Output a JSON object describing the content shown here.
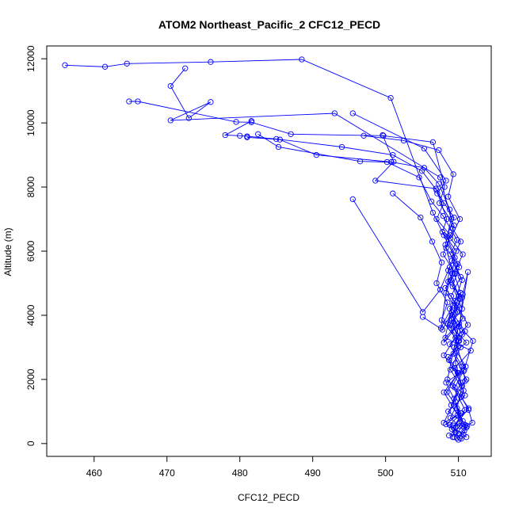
{
  "chart_data": {
    "type": "line",
    "title": "ATOM2 Northeast_Pacific_2 CFC12_PECD",
    "xlabel": "CFC12_PECD",
    "ylabel": "Altitude (m)",
    "xlim": [
      453.5,
      514.5
    ],
    "ylim": [
      -400,
      12400
    ],
    "xticks": [
      460,
      470,
      480,
      490,
      500,
      510
    ],
    "yticks": [
      0,
      2000,
      4000,
      6000,
      8000,
      10000,
      12000
    ],
    "grid": false,
    "legend": "none",
    "series_color": "#0000ff",
    "series": [
      {
        "points": [
          [
            456.0,
            11800
          ],
          [
            461.5,
            11750
          ],
          [
            464.5,
            11850
          ],
          [
            476.0,
            11900
          ],
          [
            488.5,
            11980
          ],
          [
            500.7,
            10780
          ],
          [
            506.5,
            7200
          ],
          [
            508.0,
            6500
          ],
          [
            509.5,
            5800
          ],
          [
            509.0,
            5100
          ],
          [
            510.2,
            4500
          ],
          [
            509.3,
            3800
          ],
          [
            510.0,
            3200
          ],
          [
            509.6,
            2500
          ],
          [
            510.5,
            1800
          ],
          [
            509.8,
            1100
          ],
          [
            510.7,
            600
          ],
          [
            509.4,
            200
          ]
        ]
      },
      {
        "points": [
          [
            472.5,
            11700
          ],
          [
            470.5,
            11150
          ],
          [
            473.0,
            10150
          ],
          [
            476.0,
            10650
          ],
          [
            470.5,
            10080
          ],
          [
            493.0,
            10300
          ],
          [
            507.5,
            8300
          ],
          [
            509.0,
            7000
          ],
          [
            508.2,
            6200
          ],
          [
            509.2,
            5300
          ],
          [
            508.3,
            4700
          ],
          [
            509.9,
            4100
          ],
          [
            509.0,
            3600
          ],
          [
            510.8,
            2300
          ],
          [
            508.3,
            1900
          ],
          [
            509.6,
            1300
          ],
          [
            510.2,
            550
          ],
          [
            508.7,
            250
          ]
        ]
      },
      {
        "points": [
          [
            464.8,
            10670
          ],
          [
            466.0,
            10670
          ],
          [
            479.5,
            10030
          ],
          [
            481.6,
            10020
          ],
          [
            487.0,
            9650
          ],
          [
            499.7,
            9600
          ],
          [
            506.5,
            9400
          ],
          [
            508.1,
            8000
          ],
          [
            507.4,
            7500
          ],
          [
            509.4,
            6800
          ],
          [
            508.3,
            6100
          ],
          [
            510.1,
            5500
          ],
          [
            509.2,
            4900
          ],
          [
            510.5,
            4200
          ],
          [
            508.8,
            3700
          ],
          [
            511.1,
            3150
          ],
          [
            508.6,
            2700
          ],
          [
            510.0,
            2200
          ],
          [
            508.0,
            1600
          ],
          [
            509.9,
            900
          ],
          [
            508.3,
            600
          ],
          [
            510.7,
            280
          ]
        ]
      },
      {
        "points": [
          [
            481.6,
            10060
          ],
          [
            478.0,
            9620
          ],
          [
            480.0,
            9600
          ],
          [
            481.0,
            9580
          ],
          [
            485.0,
            9500
          ],
          [
            494.0,
            9250
          ],
          [
            501.0,
            9000
          ],
          [
            505.0,
            8500
          ],
          [
            507.0,
            7900
          ],
          [
            508.4,
            7000
          ],
          [
            507.8,
            6600
          ],
          [
            509.7,
            6000
          ],
          [
            508.6,
            5400
          ],
          [
            510.1,
            4600
          ],
          [
            509.1,
            4000
          ],
          [
            510.5,
            3400
          ],
          [
            509.3,
            2800
          ],
          [
            511.1,
            2000
          ],
          [
            509.4,
            1400
          ],
          [
            510.6,
            700
          ],
          [
            509.6,
            350
          ],
          [
            510.2,
            180
          ]
        ]
      },
      {
        "points": [
          [
            481.0,
            9550
          ],
          [
            485.5,
            9480
          ],
          [
            490.5,
            9000
          ],
          [
            500.8,
            8780
          ],
          [
            505.3,
            8600
          ],
          [
            507.3,
            8100
          ],
          [
            508.8,
            7300
          ],
          [
            509.2,
            6700
          ],
          [
            510.3,
            6300
          ],
          [
            509.1,
            5700
          ],
          [
            510.5,
            5100
          ],
          [
            509.5,
            4450
          ],
          [
            511.3,
            3700
          ],
          [
            508.8,
            3100
          ],
          [
            510.5,
            2400
          ],
          [
            509.2,
            1800
          ],
          [
            510.9,
            1050
          ],
          [
            509.1,
            450
          ],
          [
            510.0,
            120
          ]
        ]
      },
      {
        "points": [
          [
            482.5,
            9650
          ],
          [
            485.3,
            9250
          ],
          [
            496.5,
            8800
          ],
          [
            500.2,
            8780
          ],
          [
            504.6,
            8300
          ],
          [
            506.3,
            7550
          ],
          [
            507.9,
            7100
          ],
          [
            509.8,
            6350
          ],
          [
            508.9,
            5900
          ],
          [
            510.3,
            5200
          ],
          [
            509.0,
            4600
          ],
          [
            510.6,
            3900
          ],
          [
            508.2,
            3300
          ],
          [
            511.7,
            2900
          ],
          [
            509.5,
            2350
          ],
          [
            510.9,
            1500
          ],
          [
            508.6,
            1000
          ],
          [
            511.2,
            550
          ],
          [
            509.8,
            170
          ]
        ]
      },
      {
        "points": [
          [
            495.5,
            10300
          ],
          [
            505.3,
            9200
          ],
          [
            508.3,
            8200
          ],
          [
            507.1,
            7800
          ],
          [
            509.4,
            7050
          ],
          [
            508.4,
            6450
          ],
          [
            509.9,
            5600
          ],
          [
            508.6,
            5050
          ],
          [
            510.5,
            4550
          ],
          [
            509.0,
            3900
          ],
          [
            510.3,
            3000
          ],
          [
            508.9,
            2300
          ],
          [
            510.7,
            1650
          ],
          [
            508.9,
            800
          ],
          [
            510.8,
            400
          ]
        ]
      },
      {
        "points": [
          [
            497.0,
            9600
          ],
          [
            502.5,
            9450
          ],
          [
            507.3,
            9150
          ],
          [
            509.3,
            8400
          ],
          [
            508.6,
            7700
          ],
          [
            510.2,
            7000
          ],
          [
            508.9,
            6400
          ],
          [
            510.6,
            5900
          ],
          [
            509.4,
            5300
          ],
          [
            510.3,
            4700
          ],
          [
            508.8,
            4200
          ],
          [
            510.9,
            3500
          ],
          [
            509.4,
            3000
          ],
          [
            511.0,
            2400
          ],
          [
            509.5,
            1750
          ],
          [
            511.4,
            1100
          ],
          [
            509.3,
            500
          ],
          [
            511.1,
            200
          ]
        ]
      },
      {
        "points": [
          [
            499.6,
            9620
          ],
          [
            501.1,
            8790
          ],
          [
            498.6,
            8200
          ],
          [
            506.9,
            7950
          ],
          [
            508.0,
            7500
          ],
          [
            507.0,
            7000
          ],
          [
            508.9,
            6500
          ],
          [
            507.9,
            5900
          ],
          [
            509.6,
            5300
          ],
          [
            508.2,
            4850
          ],
          [
            509.8,
            4300
          ],
          [
            508.5,
            3750
          ],
          [
            510.1,
            3200
          ],
          [
            508.7,
            2600
          ],
          [
            510.3,
            1900
          ],
          [
            509.0,
            1200
          ],
          [
            511.1,
            500
          ],
          [
            510.4,
            150
          ]
        ]
      },
      {
        "points": [
          [
            495.5,
            7620
          ],
          [
            505.1,
            4100
          ],
          [
            507.5,
            4800
          ],
          [
            508.8,
            5500
          ],
          [
            507.6,
            3600
          ],
          [
            509.2,
            4300
          ],
          [
            508.0,
            3150
          ],
          [
            510.1,
            3750
          ],
          [
            508.5,
            2000
          ],
          [
            510.0,
            1600
          ],
          [
            508.0,
            650
          ],
          [
            510.3,
            950
          ],
          [
            509.2,
            200
          ]
        ]
      },
      {
        "points": [
          [
            501.0,
            7800
          ],
          [
            504.8,
            7050
          ],
          [
            506.4,
            6300
          ],
          [
            507.7,
            5650
          ],
          [
            507.0,
            5000
          ],
          [
            508.5,
            4400
          ],
          [
            507.7,
            3850
          ],
          [
            509.6,
            3300
          ],
          [
            508.0,
            2750
          ],
          [
            509.9,
            2200
          ],
          [
            508.4,
            1600
          ],
          [
            510.4,
            950
          ],
          [
            508.8,
            580
          ],
          [
            510.1,
            300
          ]
        ]
      },
      {
        "points": [
          [
            505.1,
            3950
          ],
          [
            507.8,
            3550
          ],
          [
            509.1,
            4100
          ],
          [
            510.1,
            3300
          ],
          [
            510.6,
            4650
          ],
          [
            511.3,
            5350
          ],
          [
            510.1,
            3650
          ],
          [
            512.0,
            3200
          ],
          [
            510.7,
            2250
          ],
          [
            510.9,
            1950
          ],
          [
            510.4,
            1450
          ],
          [
            511.4,
            1050
          ],
          [
            511.9,
            650
          ],
          [
            511.0,
            570
          ],
          [
            509.3,
            560
          ]
        ]
      }
    ]
  }
}
